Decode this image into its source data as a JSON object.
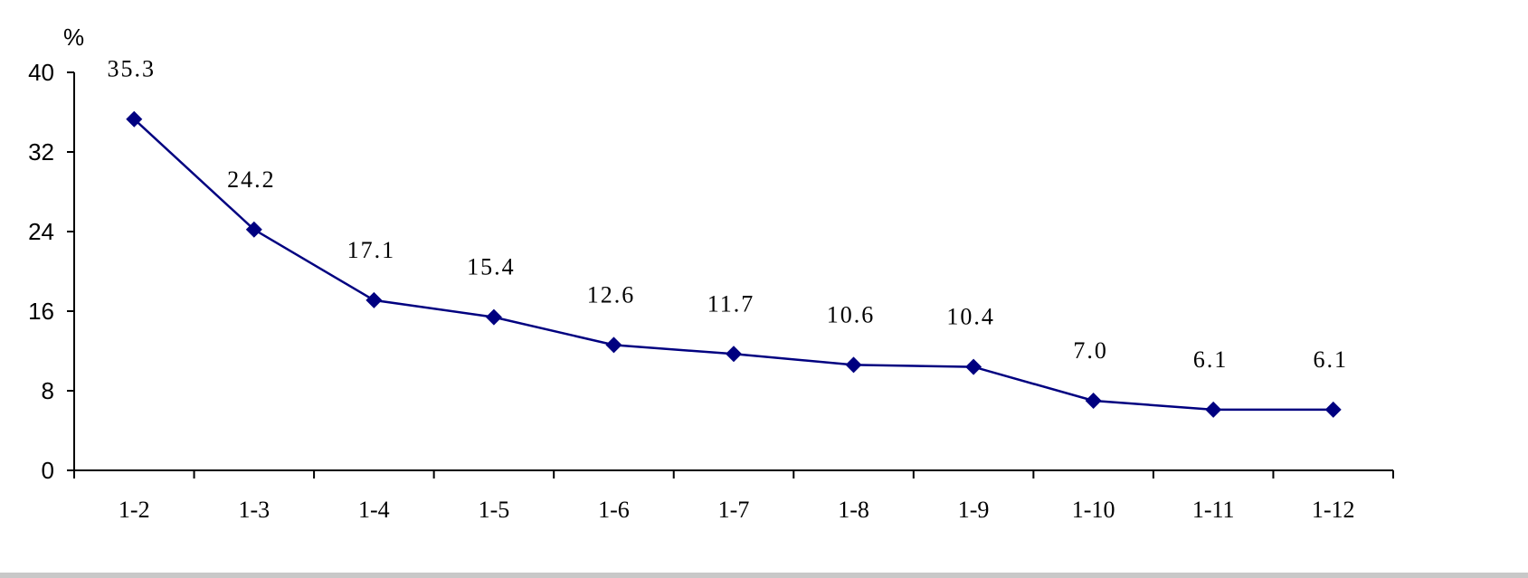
{
  "chart_data": {
    "type": "line",
    "unit_label": "%",
    "categories": [
      "1-2",
      "1-3",
      "1-4",
      "1-5",
      "1-6",
      "1-7",
      "1-8",
      "1-9",
      "1-10",
      "1-11",
      "1-12"
    ],
    "values": [
      35.3,
      24.2,
      17.1,
      15.4,
      12.6,
      11.7,
      10.6,
      10.4,
      7.0,
      6.1,
      6.1
    ],
    "data_labels": [
      "35.3",
      "24.2",
      "17.1",
      "15.4",
      "12.6",
      "11.7",
      "10.6",
      "10.4",
      "7.0",
      "6.1",
      "6.1"
    ],
    "y_ticks": [
      0,
      8,
      16,
      24,
      32,
      40
    ],
    "ylim": [
      0,
      40
    ],
    "title": "",
    "xlabel": "",
    "ylabel": "",
    "grid": false,
    "legend": "none",
    "line_color": "#000080",
    "marker": "diamond"
  }
}
